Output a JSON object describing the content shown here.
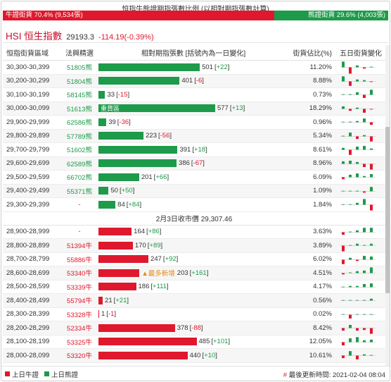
{
  "ratio": {
    "title": "恒指牛熊證期指張數比例 (以相對期指張數計算)",
    "bull_label": "牛證街貨 70.4% (9,534張)",
    "bear_label": "熊證街貨 29.6% (4,003張)",
    "bull_pct": 70.4
  },
  "index": {
    "name": "HSI 恒生指數",
    "value": "29193.3",
    "change": "-114.19(-0.39%)"
  },
  "headers": {
    "range": "恒指街貨區域",
    "street": "法興精選",
    "bar": "相對期指張數 [括號內為一日變化]",
    "pct": "街貨佔比(%)",
    "spark": "五日街貨變化"
  },
  "bar_scale_max": 591,
  "bear_rows": [
    {
      "range": "30,300-30,399",
      "street": "51805熊",
      "value": 501,
      "change": "[+22]",
      "pct": "11.20%",
      "spark": [
        0.9,
        -1.0,
        0.3,
        -0.2,
        0.1
      ]
    },
    {
      "range": "30,200-30,299",
      "street": "51804熊",
      "value": 401,
      "change": "[-6]",
      "pct": "8.88%",
      "spark": [
        0.8,
        -0.7,
        0.3,
        0.2,
        -0.1
      ]
    },
    {
      "range": "30,100-30,199",
      "street": "58145熊",
      "value": 33,
      "change": "[-15]",
      "pct": "0.73%",
      "spark": [
        0.0,
        0.1,
        0.4,
        -0.5,
        0.8
      ]
    },
    {
      "range": "30,000-30,099",
      "street": "51613熊",
      "value": 577,
      "change": "[+13]",
      "pct": "18.29%",
      "tag": "重貨區",
      "spark": [
        0.4,
        -0.3,
        0.2,
        -0.6,
        -0.1
      ]
    },
    {
      "range": "29,900-29,999",
      "street": "62586熊",
      "value": 39,
      "change": "[-36]",
      "pct": "0.96%",
      "spark": [
        0.0,
        0.1,
        0.2,
        0.6,
        -0.4
      ]
    },
    {
      "range": "29,800-29,899",
      "street": "57789熊",
      "value": 223,
      "change": "[-56]",
      "pct": "5.34%",
      "spark": [
        0.1,
        0.6,
        -0.4,
        0.2,
        -0.8
      ]
    },
    {
      "range": "29,700-29,799",
      "street": "51602熊",
      "value": 391,
      "change": "[+18]",
      "pct": "8.61%",
      "spark": [
        0.3,
        -0.8,
        0.5,
        0.6,
        0.2
      ]
    },
    {
      "range": "29,600-29,699",
      "street": "62589熊",
      "value": 386,
      "change": "[-67]",
      "pct": "8.96%",
      "spark": [
        0.4,
        0.5,
        0.3,
        -0.5,
        -0.9
      ]
    },
    {
      "range": "29,500-29,599",
      "street": "66702熊",
      "value": 201,
      "change": "[+66]",
      "pct": "6.09%",
      "spark": [
        -0.3,
        0.4,
        0.6,
        0.2,
        0.5
      ]
    },
    {
      "range": "29,400-29,499",
      "street": "55371熊",
      "value": 50,
      "change": "[+50]",
      "pct": "1.09%",
      "spark": [
        0.0,
        0.0,
        0.1,
        -0.2,
        0.7
      ]
    },
    {
      "range": "29,300-29,399",
      "street": "-",
      "value": 84,
      "change": "[+84]",
      "pct": "1.84%",
      "spark": [
        0.0,
        0.0,
        0.3,
        0.9,
        -0.9
      ]
    }
  ],
  "close_label": "2月3日收市價 29,307.46",
  "bull_rows": [
    {
      "range": "28,900-28,999",
      "street": "-",
      "value": 164,
      "change": "[+86]",
      "pct": "3.63%",
      "spark": [
        -0.4,
        0.1,
        0.3,
        0.7,
        0.7
      ]
    },
    {
      "range": "28,800-28,899",
      "street": "51394牛",
      "value": 170,
      "change": "[+89]",
      "pct": "3.89%",
      "spark": [
        -0.9,
        0.0,
        0.3,
        0.1,
        0.3
      ]
    },
    {
      "range": "28,700-28,799",
      "street": "55886牛",
      "value": 247,
      "change": "[+92]",
      "pct": "6.02%",
      "spark": [
        -0.7,
        0.3,
        -0.2,
        0.6,
        0.5
      ]
    },
    {
      "range": "28,600-28,699",
      "street": "53340牛",
      "value": 203,
      "change": "[+161]",
      "pct": "4.51%",
      "newtag": "▲最多新增",
      "spark": [
        -0.2,
        0.1,
        0.3,
        0.4,
        0.9
      ]
    },
    {
      "range": "28,500-28,599",
      "street": "53339牛",
      "value": 186,
      "change": "[+111]",
      "pct": "4.17%",
      "spark": [
        0.0,
        0.2,
        0.2,
        0.5,
        0.6
      ]
    },
    {
      "range": "28,400-28,499",
      "street": "55794牛",
      "value": 21,
      "change": "[+21]",
      "pct": "0.56%",
      "spark": [
        0.0,
        0.0,
        0.0,
        0.1,
        0.3
      ]
    },
    {
      "range": "28,300-28,399",
      "street": "53328牛",
      "value": 1,
      "change": "[-1]",
      "pct": "0.02%",
      "spark": [
        0.0,
        -0.6,
        0.0,
        0.0,
        0.0
      ]
    },
    {
      "range": "28,200-28,299",
      "street": "52334牛",
      "value": 378,
      "change": "[-88]",
      "pct": "8.42%",
      "spark": [
        -0.4,
        0.5,
        -0.4,
        -0.3,
        -0.9
      ]
    },
    {
      "range": "28,100-28,199",
      "street": "53325牛",
      "value": 485,
      "change": "[+101]",
      "pct": "12.05%",
      "spark": [
        -0.5,
        0.6,
        0.8,
        0.3,
        0.4
      ]
    },
    {
      "range": "28,000-28,099",
      "street": "53320牛",
      "value": 440,
      "change": "[+10]",
      "pct": "10.61%",
      "spark": [
        -0.4,
        0.7,
        -0.6,
        0.2,
        0.1
      ]
    }
  ],
  "footer": {
    "legend_bull": "上日牛證",
    "legend_bear": "上日熊證",
    "update_hash": "#",
    "update_text": "最後更新時間: 2021-02-04 08:04"
  },
  "colors": {
    "bull": "#e0182d",
    "bear": "#1e9a4b",
    "hsi_title": "#c8102e"
  }
}
